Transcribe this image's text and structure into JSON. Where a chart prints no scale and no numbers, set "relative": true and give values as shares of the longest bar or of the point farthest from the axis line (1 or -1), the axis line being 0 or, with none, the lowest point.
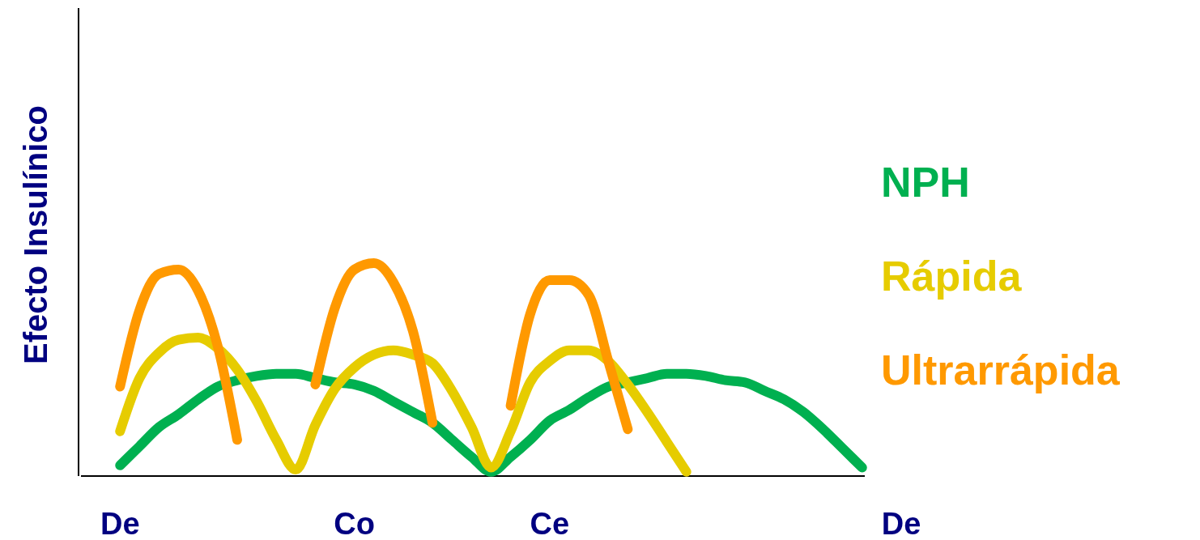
{
  "chart_data": {
    "type": "line",
    "relative": true,
    "ylabel": "Efecto Insulínico",
    "categories": [
      null,
      null,
      "De",
      null,
      null,
      null,
      null,
      null,
      null,
      null,
      null,
      null,
      null,
      null,
      "Co",
      null,
      null,
      null,
      null,
      null,
      null,
      null,
      null,
      null,
      "Ce",
      null,
      null,
      null,
      null,
      null,
      null,
      null,
      null,
      null,
      null,
      null,
      null,
      null,
      null,
      null,
      null,
      null,
      "De"
    ],
    "tick_labels": "x",
    "grid": false,
    "legend": "right",
    "marker": "none",
    "line_style": "solid",
    "series": [
      {
        "name": "NPH",
        "color": "#00b050",
        "values": [
          null,
          null,
          0.05,
          0.14,
          0.23,
          0.29,
          0.36,
          0.42,
          0.45,
          0.47,
          0.48,
          0.48,
          0.46,
          0.44,
          0.43,
          0.4,
          0.35,
          0.3,
          0.25,
          0.17,
          0.09,
          0.02,
          0.09,
          0.17,
          0.26,
          0.31,
          0.37,
          0.42,
          0.44,
          0.46,
          0.48,
          0.48,
          0.47,
          0.45,
          0.44,
          0.4,
          0.36,
          0.3,
          0.22,
          0.13,
          0.04,
          null,
          null
        ]
      },
      {
        "name": "Rápida",
        "color": "#e6cc00",
        "values": [
          null,
          null,
          0.21,
          0.46,
          0.58,
          0.64,
          0.65,
          0.6,
          0.5,
          0.35,
          0.17,
          0.03,
          0.24,
          0.41,
          0.51,
          0.57,
          0.59,
          0.57,
          0.53,
          0.4,
          0.23,
          0.04,
          0.21,
          0.44,
          0.54,
          0.59,
          0.59,
          0.54,
          0.43,
          0.3,
          0.16,
          0.02,
          null,
          null,
          null,
          null,
          null,
          null,
          null,
          null,
          null,
          null,
          null
        ]
      },
      {
        "name": "Ultrarrápida",
        "color": "#ff9900",
        "values": [
          null,
          null,
          0.42,
          0.78,
          0.95,
          0.97,
          0.87,
          0.61,
          0.17,
          null,
          null,
          null,
          0.43,
          0.79,
          0.97,
          1.0,
          0.91,
          0.68,
          0.25,
          null,
          null,
          null,
          0.33,
          0.76,
          0.92,
          0.92,
          0.85,
          0.54,
          0.22,
          null,
          null,
          null,
          null,
          null,
          null,
          null,
          null,
          null,
          null,
          null,
          null,
          null,
          null
        ]
      }
    ]
  }
}
